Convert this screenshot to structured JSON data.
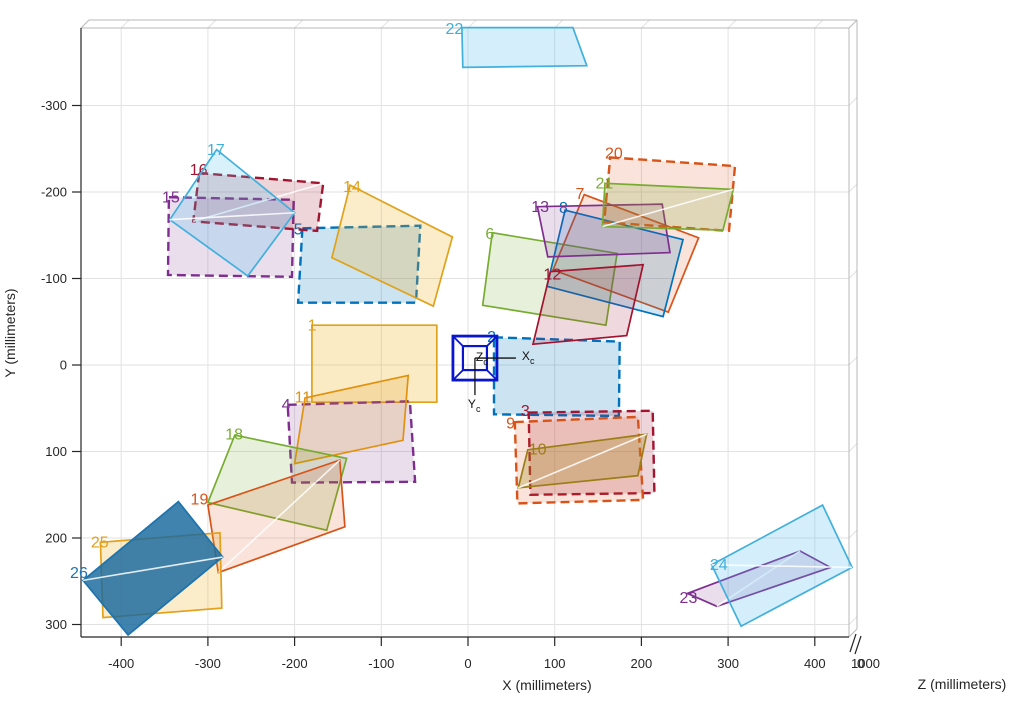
{
  "chart_data": {
    "type": "scatter",
    "description": "Camera extrinsics visualization: 26 numbered planar calibration patterns positioned around a camera, camera-centric view",
    "title": "",
    "xlabel": "X (millimeters)",
    "ylabel": "Y (millimeters)",
    "zlabel": "Z (millimeters)",
    "x_ticks": [
      -400,
      -300,
      -200,
      -100,
      0,
      100,
      200,
      300,
      400
    ],
    "y_ticks": [
      -300,
      -200,
      -100,
      0,
      100,
      200,
      300
    ],
    "z_tick_labels": [
      "1000",
      "0"
    ],
    "xlim": [
      -446,
      440
    ],
    "ylim": [
      -390,
      315
    ],
    "grid": true,
    "grid_color": "#e2e2e2",
    "box_color": "#b8b8b8",
    "axis_color": "#262626",
    "camera": {
      "center": [
        8,
        -8
      ],
      "color": "#0a16ce",
      "axis_label_x": "X",
      "axis_label_y": "Y",
      "axis_label_z": "Z",
      "axis_label_sub": "c",
      "label_color": "#111111"
    },
    "patches": [
      {
        "n": "1",
        "stroke": "#dfa21b",
        "fill": "rgba(237,177,32,0.26)",
        "dash": false,
        "diag": false,
        "w": 1.7,
        "pts": [
          [
            -180,
            -46
          ],
          [
            -36,
            -46
          ],
          [
            -36,
            43
          ],
          [
            -180,
            43
          ]
        ],
        "label": [
          -185,
          -56
        ]
      },
      {
        "n": "2",
        "stroke": "#0072bd",
        "fill": "rgba(0,114,189,0.20)",
        "dash": true,
        "diag": false,
        "w": 2.4,
        "pts": [
          [
            30,
            -32
          ],
          [
            175,
            -27
          ],
          [
            174,
            59
          ],
          [
            30,
            57
          ]
        ],
        "label": [
          22,
          -43
        ]
      },
      {
        "n": "3",
        "stroke": "#a2142f",
        "fill": "rgba(162,20,47,0.18)",
        "dash": true,
        "diag": false,
        "w": 2.4,
        "pts": [
          [
            70,
            55
          ],
          [
            213,
            53
          ],
          [
            215,
            148
          ],
          [
            72,
            150
          ]
        ],
        "label": [
          61,
          43
        ]
      },
      {
        "n": "4",
        "stroke": "#7e2f8e",
        "fill": "rgba(126,47,142,0.16)",
        "dash": true,
        "diag": false,
        "w": 2.4,
        "pts": [
          [
            -208,
            46
          ],
          [
            -67,
            42
          ],
          [
            -61,
            135
          ],
          [
            -203,
            136
          ]
        ],
        "label": [
          -215,
          36
        ]
      },
      {
        "n": "5",
        "stroke": "#0072bd",
        "fill": "rgba(0,114,189,0.20)",
        "dash": true,
        "diag": false,
        "w": 2.4,
        "pts": [
          [
            -191,
            -158
          ],
          [
            -55,
            -161
          ],
          [
            -60,
            -72
          ],
          [
            -196,
            -72
          ]
        ],
        "label": [
          -201,
          -167
        ]
      },
      {
        "n": "6",
        "stroke": "#77ac30",
        "fill": "rgba(119,172,48,0.18)",
        "dash": false,
        "diag": false,
        "w": 1.7,
        "pts": [
          [
            28,
            -153
          ],
          [
            172,
            -129
          ],
          [
            159,
            -46
          ],
          [
            17,
            -69
          ]
        ],
        "label": [
          20,
          -162
        ]
      },
      {
        "n": "7",
        "stroke": "#d95319",
        "fill": "rgba(217,83,25,0.16)",
        "dash": false,
        "diag": false,
        "w": 1.7,
        "pts": [
          [
            134,
            -197
          ],
          [
            266,
            -147
          ],
          [
            231,
            -61
          ],
          [
            98,
            -110
          ]
        ],
        "label": [
          124,
          -208
        ]
      },
      {
        "n": "8",
        "stroke": "#0072bd",
        "fill": "rgba(0,114,189,0.18)",
        "dash": false,
        "diag": false,
        "w": 1.7,
        "pts": [
          [
            112,
            -179
          ],
          [
            248,
            -145
          ],
          [
            225,
            -56
          ],
          [
            91,
            -91
          ]
        ],
        "label": [
          105,
          -192
        ]
      },
      {
        "n": "9",
        "stroke": "#d95319",
        "fill": "rgba(217,83,25,0.16)",
        "dash": true,
        "diag": false,
        "w": 2.4,
        "pts": [
          [
            54,
            66
          ],
          [
            196,
            60
          ],
          [
            202,
            156
          ],
          [
            57,
            160
          ]
        ],
        "label": [
          44,
          57
        ]
      },
      {
        "n": "10",
        "stroke": "#9c7e16",
        "fill": "rgba(166,138,31,0.30)",
        "dash": false,
        "diag": true,
        "w": 1.7,
        "pts": [
          [
            69,
            98
          ],
          [
            206,
            80
          ],
          [
            196,
            128
          ],
          [
            58,
            142
          ]
        ],
        "label": [
          70,
          87
        ]
      },
      {
        "n": "11",
        "stroke": "#e0920f",
        "fill": "rgba(224,146,15,0.18)",
        "dash": false,
        "diag": false,
        "w": 1.7,
        "pts": [
          [
            -188,
            38
          ],
          [
            -69,
            12
          ],
          [
            -75,
            87
          ],
          [
            -200,
            114
          ]
        ],
        "label": [
          -200,
          27
        ]
      },
      {
        "n": "12",
        "stroke": "#a2142f",
        "fill": "rgba(162,20,47,0.16)",
        "dash": false,
        "diag": false,
        "w": 1.7,
        "pts": [
          [
            95,
            -108
          ],
          [
            202,
            -116
          ],
          [
            183,
            -34
          ],
          [
            75,
            -24
          ]
        ],
        "label": [
          87,
          -115
        ]
      },
      {
        "n": "13",
        "stroke": "#7e2f8e",
        "fill": "rgba(126,47,142,0.16)",
        "dash": false,
        "diag": false,
        "w": 1.7,
        "pts": [
          [
            80,
            -183
          ],
          [
            224,
            -186
          ],
          [
            233,
            -130
          ],
          [
            92,
            -125
          ]
        ],
        "label": [
          73,
          -193
        ]
      },
      {
        "n": "14",
        "stroke": "#dfa21b",
        "fill": "rgba(237,177,32,0.24)",
        "dash": false,
        "diag": false,
        "w": 1.7,
        "pts": [
          [
            -136,
            -208
          ],
          [
            -18,
            -148
          ],
          [
            -40,
            -68
          ],
          [
            -157,
            -124
          ]
        ],
        "label": [
          -144,
          -216
        ]
      },
      {
        "n": "15",
        "stroke": "#7e2f8e",
        "fill": "rgba(126,47,142,0.16)",
        "dash": true,
        "diag": false,
        "w": 2.4,
        "pts": [
          [
            -345,
            -194
          ],
          [
            -201,
            -191
          ],
          [
            -203,
            -102
          ],
          [
            -346,
            -104
          ]
        ],
        "label": [
          -353,
          -204
        ]
      },
      {
        "n": "16",
        "stroke": "#a2142f",
        "fill": "rgba(162,20,47,0.18)",
        "dash": true,
        "diag": true,
        "w": 2.4,
        "pts": [
          [
            -310,
            -222
          ],
          [
            -167,
            -210
          ],
          [
            -174,
            -155
          ],
          [
            -317,
            -166
          ]
        ],
        "label": [
          -321,
          -236
        ]
      },
      {
        "n": "17",
        "stroke": "#41b0dc",
        "fill": "rgba(77,190,238,0.22)",
        "dash": false,
        "diag": true,
        "w": 1.7,
        "pts": [
          [
            -290,
            -249
          ],
          [
            -200,
            -176
          ],
          [
            -254,
            -103
          ],
          [
            -344,
            -168
          ]
        ],
        "label": [
          -301,
          -259
        ]
      },
      {
        "n": "18",
        "stroke": "#77ac30",
        "fill": "rgba(119,172,48,0.18)",
        "dash": false,
        "diag": false,
        "w": 1.7,
        "pts": [
          [
            -269,
            81
          ],
          [
            -140,
            108
          ],
          [
            -163,
            191
          ],
          [
            -300,
            159
          ]
        ],
        "label": [
          -280,
          70
        ]
      },
      {
        "n": "19",
        "stroke": "#d95319",
        "fill": "rgba(217,83,25,0.16)",
        "dash": false,
        "diag": true,
        "w": 1.7,
        "pts": [
          [
            -300,
            162
          ],
          [
            -148,
            110
          ],
          [
            -142,
            187
          ],
          [
            -288,
            240
          ]
        ],
        "label": [
          -320,
          145
        ]
      },
      {
        "n": "20",
        "stroke": "#d95319",
        "fill": "rgba(217,83,25,0.16)",
        "dash": true,
        "diag": false,
        "w": 2.4,
        "pts": [
          [
            164,
            -240
          ],
          [
            308,
            -230
          ],
          [
            301,
            -155
          ],
          [
            157,
            -165
          ]
        ],
        "label": [
          158,
          -255
        ]
      },
      {
        "n": "21",
        "stroke": "#77ac30",
        "fill": "rgba(119,172,48,0.20)",
        "dash": false,
        "diag": true,
        "w": 1.7,
        "pts": [
          [
            158,
            -210
          ],
          [
            306,
            -203
          ],
          [
            294,
            -156
          ],
          [
            155,
            -160
          ]
        ],
        "label": [
          147,
          -220
        ]
      },
      {
        "n": "22",
        "stroke": "#41b0dc",
        "fill": "rgba(77,190,238,0.24)",
        "dash": false,
        "diag": false,
        "w": 1.7,
        "pts": [
          [
            -7,
            -390
          ],
          [
            121,
            -390
          ],
          [
            137,
            -346
          ],
          [
            -6,
            -344
          ]
        ],
        "label": [
          -26,
          -399
        ]
      },
      {
        "n": "23",
        "stroke": "#7e2f8e",
        "fill": "rgba(126,47,142,0.16)",
        "dash": false,
        "diag": true,
        "w": 1.7,
        "pts": [
          [
            253,
            264
          ],
          [
            383,
            215
          ],
          [
            418,
            234
          ],
          [
            287,
            279
          ]
        ],
        "label": [
          244,
          259
        ]
      },
      {
        "n": "24",
        "stroke": "#41b0dc",
        "fill": "rgba(77,190,238,0.24)",
        "dash": false,
        "diag": true,
        "w": 1.7,
        "pts": [
          [
            409,
            162
          ],
          [
            443,
            234
          ],
          [
            315,
            302
          ],
          [
            281,
            231
          ]
        ],
        "label": [
          279,
          221
        ]
      },
      {
        "n": "25",
        "stroke": "#e3a01c",
        "fill": "rgba(237,177,32,0.24)",
        "dash": false,
        "diag": false,
        "w": 1.7,
        "pts": [
          [
            -424,
            205
          ],
          [
            -286,
            194
          ],
          [
            -284,
            281
          ],
          [
            -421,
            292
          ]
        ],
        "label": [
          -435,
          195
        ]
      },
      {
        "n": "26",
        "stroke": "#1f74ad",
        "fill": "rgba(23,104,158,0.82)",
        "dash": false,
        "diag": true,
        "w": 1.8,
        "pts": [
          [
            -334,
            158
          ],
          [
            -283,
            222
          ],
          [
            -392,
            312
          ],
          [
            -444,
            249
          ]
        ],
        "label": [
          -459,
          230
        ]
      }
    ]
  }
}
